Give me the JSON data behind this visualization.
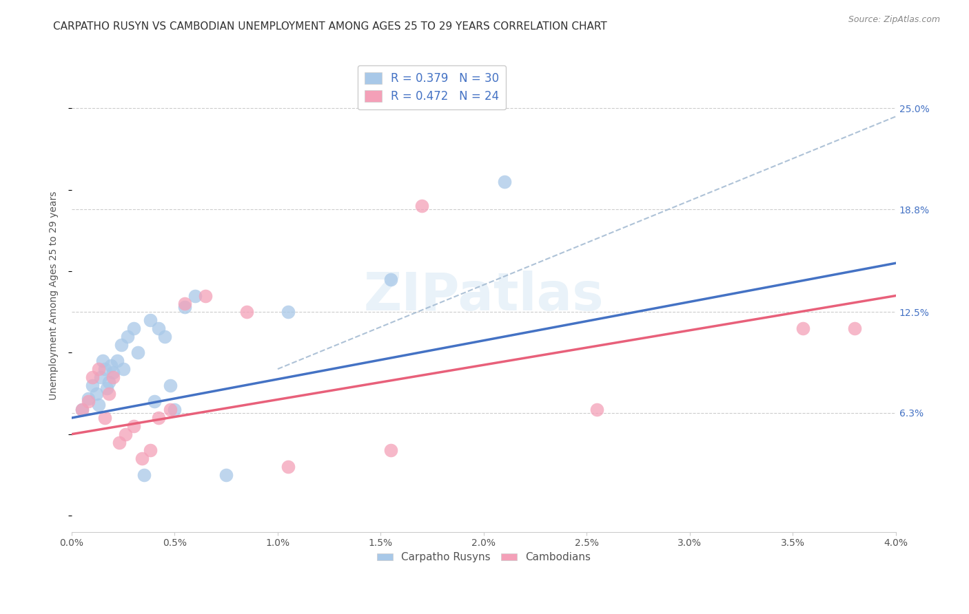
{
  "title": "CARPATHO RUSYN VS CAMBODIAN UNEMPLOYMENT AMONG AGES 25 TO 29 YEARS CORRELATION CHART",
  "source": "Source: ZipAtlas.com",
  "ylabel": "Unemployment Among Ages 25 to 29 years",
  "ytick_labels": [
    "6.3%",
    "12.5%",
    "18.8%",
    "25.0%"
  ],
  "ytick_values": [
    6.3,
    12.5,
    18.8,
    25.0
  ],
  "xlim": [
    0.0,
    4.0
  ],
  "ylim": [
    -1.0,
    28.0
  ],
  "blue_color": "#a8c8e8",
  "pink_color": "#f4a0b8",
  "blue_line_color": "#4472c4",
  "pink_line_color": "#e8607a",
  "dashed_line_color": "#a0b8d0",
  "watermark": "ZIPatlas",
  "carpatho_x": [
    0.05,
    0.08,
    0.1,
    0.12,
    0.13,
    0.14,
    0.15,
    0.16,
    0.17,
    0.18,
    0.19,
    0.2,
    0.22,
    0.24,
    0.25,
    0.27,
    0.3,
    0.32,
    0.35,
    0.38,
    0.4,
    0.42,
    0.45,
    0.48,
    0.5,
    0.55,
    0.6,
    0.75,
    1.05,
    1.55,
    2.1
  ],
  "carpatho_y": [
    6.5,
    7.2,
    8.0,
    7.5,
    6.8,
    8.5,
    9.5,
    9.0,
    7.8,
    8.2,
    9.2,
    8.8,
    9.5,
    10.5,
    9.0,
    11.0,
    11.5,
    10.0,
    2.5,
    12.0,
    7.0,
    11.5,
    11.0,
    8.0,
    6.5,
    12.8,
    13.5,
    2.5,
    12.5,
    14.5,
    20.5
  ],
  "cambodian_x": [
    0.05,
    0.08,
    0.1,
    0.13,
    0.16,
    0.18,
    0.2,
    0.23,
    0.26,
    0.3,
    0.34,
    0.38,
    0.42,
    0.48,
    0.55,
    0.65,
    0.85,
    1.05,
    1.55,
    1.7,
    2.55,
    3.55,
    3.8
  ],
  "cambodian_y": [
    6.5,
    7.0,
    8.5,
    9.0,
    6.0,
    7.5,
    8.5,
    4.5,
    5.0,
    5.5,
    3.5,
    4.0,
    6.0,
    6.5,
    13.0,
    13.5,
    12.5,
    3.0,
    4.0,
    19.0,
    6.5,
    11.5,
    11.5
  ],
  "blue_trendline": [
    0.0,
    6.0,
    4.0,
    15.5
  ],
  "pink_trendline": [
    0.0,
    5.0,
    4.0,
    13.5
  ],
  "dashed_line": [
    1.0,
    9.0,
    4.0,
    24.5
  ],
  "title_fontsize": 11,
  "axis_label_fontsize": 10,
  "tick_fontsize": 10
}
